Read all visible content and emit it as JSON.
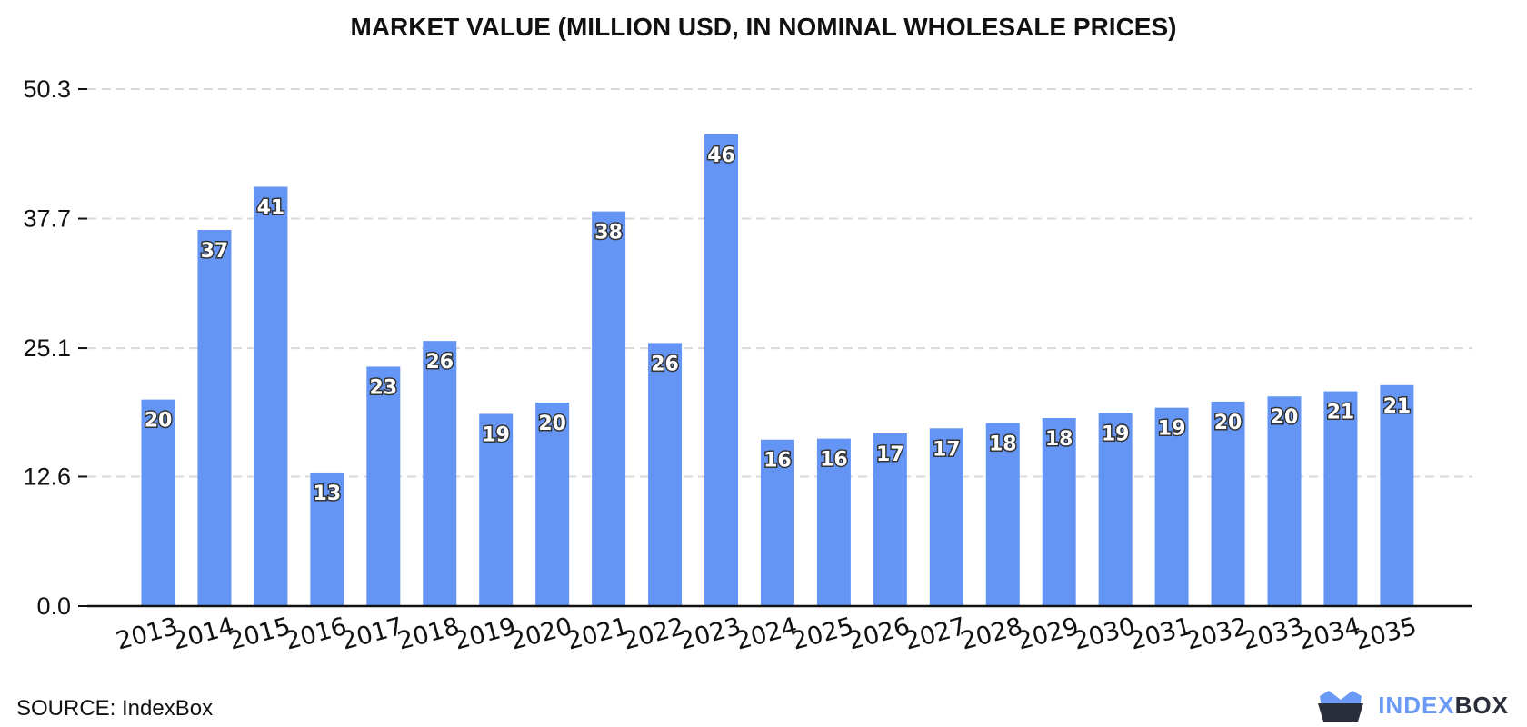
{
  "source_label": "SOURCE: IndexBox",
  "brand": {
    "part1": "INDEX",
    "part2": "BOX"
  },
  "colors": {
    "bar": "#6495f5",
    "grid": "#d9d9d9",
    "axis": "#111111",
    "label_fill": "#ffffff",
    "label_stroke": "#333333"
  },
  "chart_data": {
    "type": "bar",
    "title": "MARKET VALUE (MILLION USD, IN NOMINAL WHOLESALE PRICES)",
    "xlabel": "",
    "ylabel": "",
    "categories": [
      "2013",
      "2014",
      "2015",
      "2016",
      "2017",
      "2018",
      "2019",
      "2020",
      "2021",
      "2022",
      "2023",
      "2024",
      "2025",
      "2026",
      "2027",
      "2028",
      "2029",
      "2030",
      "2031",
      "2032",
      "2033",
      "2034",
      "2035"
    ],
    "values": [
      20.1,
      36.6,
      40.8,
      13.0,
      23.3,
      25.8,
      18.7,
      19.8,
      38.4,
      25.6,
      45.9,
      16.2,
      16.3,
      16.8,
      17.3,
      17.8,
      18.3,
      18.8,
      19.3,
      19.9,
      20.4,
      20.9,
      21.5
    ],
    "labels": [
      "20",
      "37",
      "41",
      "13",
      "23",
      "26",
      "19",
      "20",
      "38",
      "26",
      "46",
      "16",
      "16",
      "17",
      "17",
      "18",
      "18",
      "19",
      "19",
      "20",
      "20",
      "21",
      "21"
    ],
    "yticks": [
      "0.0",
      "12.6",
      "25.1",
      "37.7",
      "50.3"
    ],
    "ytick_values": [
      0,
      12.6,
      25.1,
      37.7,
      50.3
    ],
    "ylim": [
      0,
      50.3
    ],
    "grid": true,
    "legend": "none"
  }
}
